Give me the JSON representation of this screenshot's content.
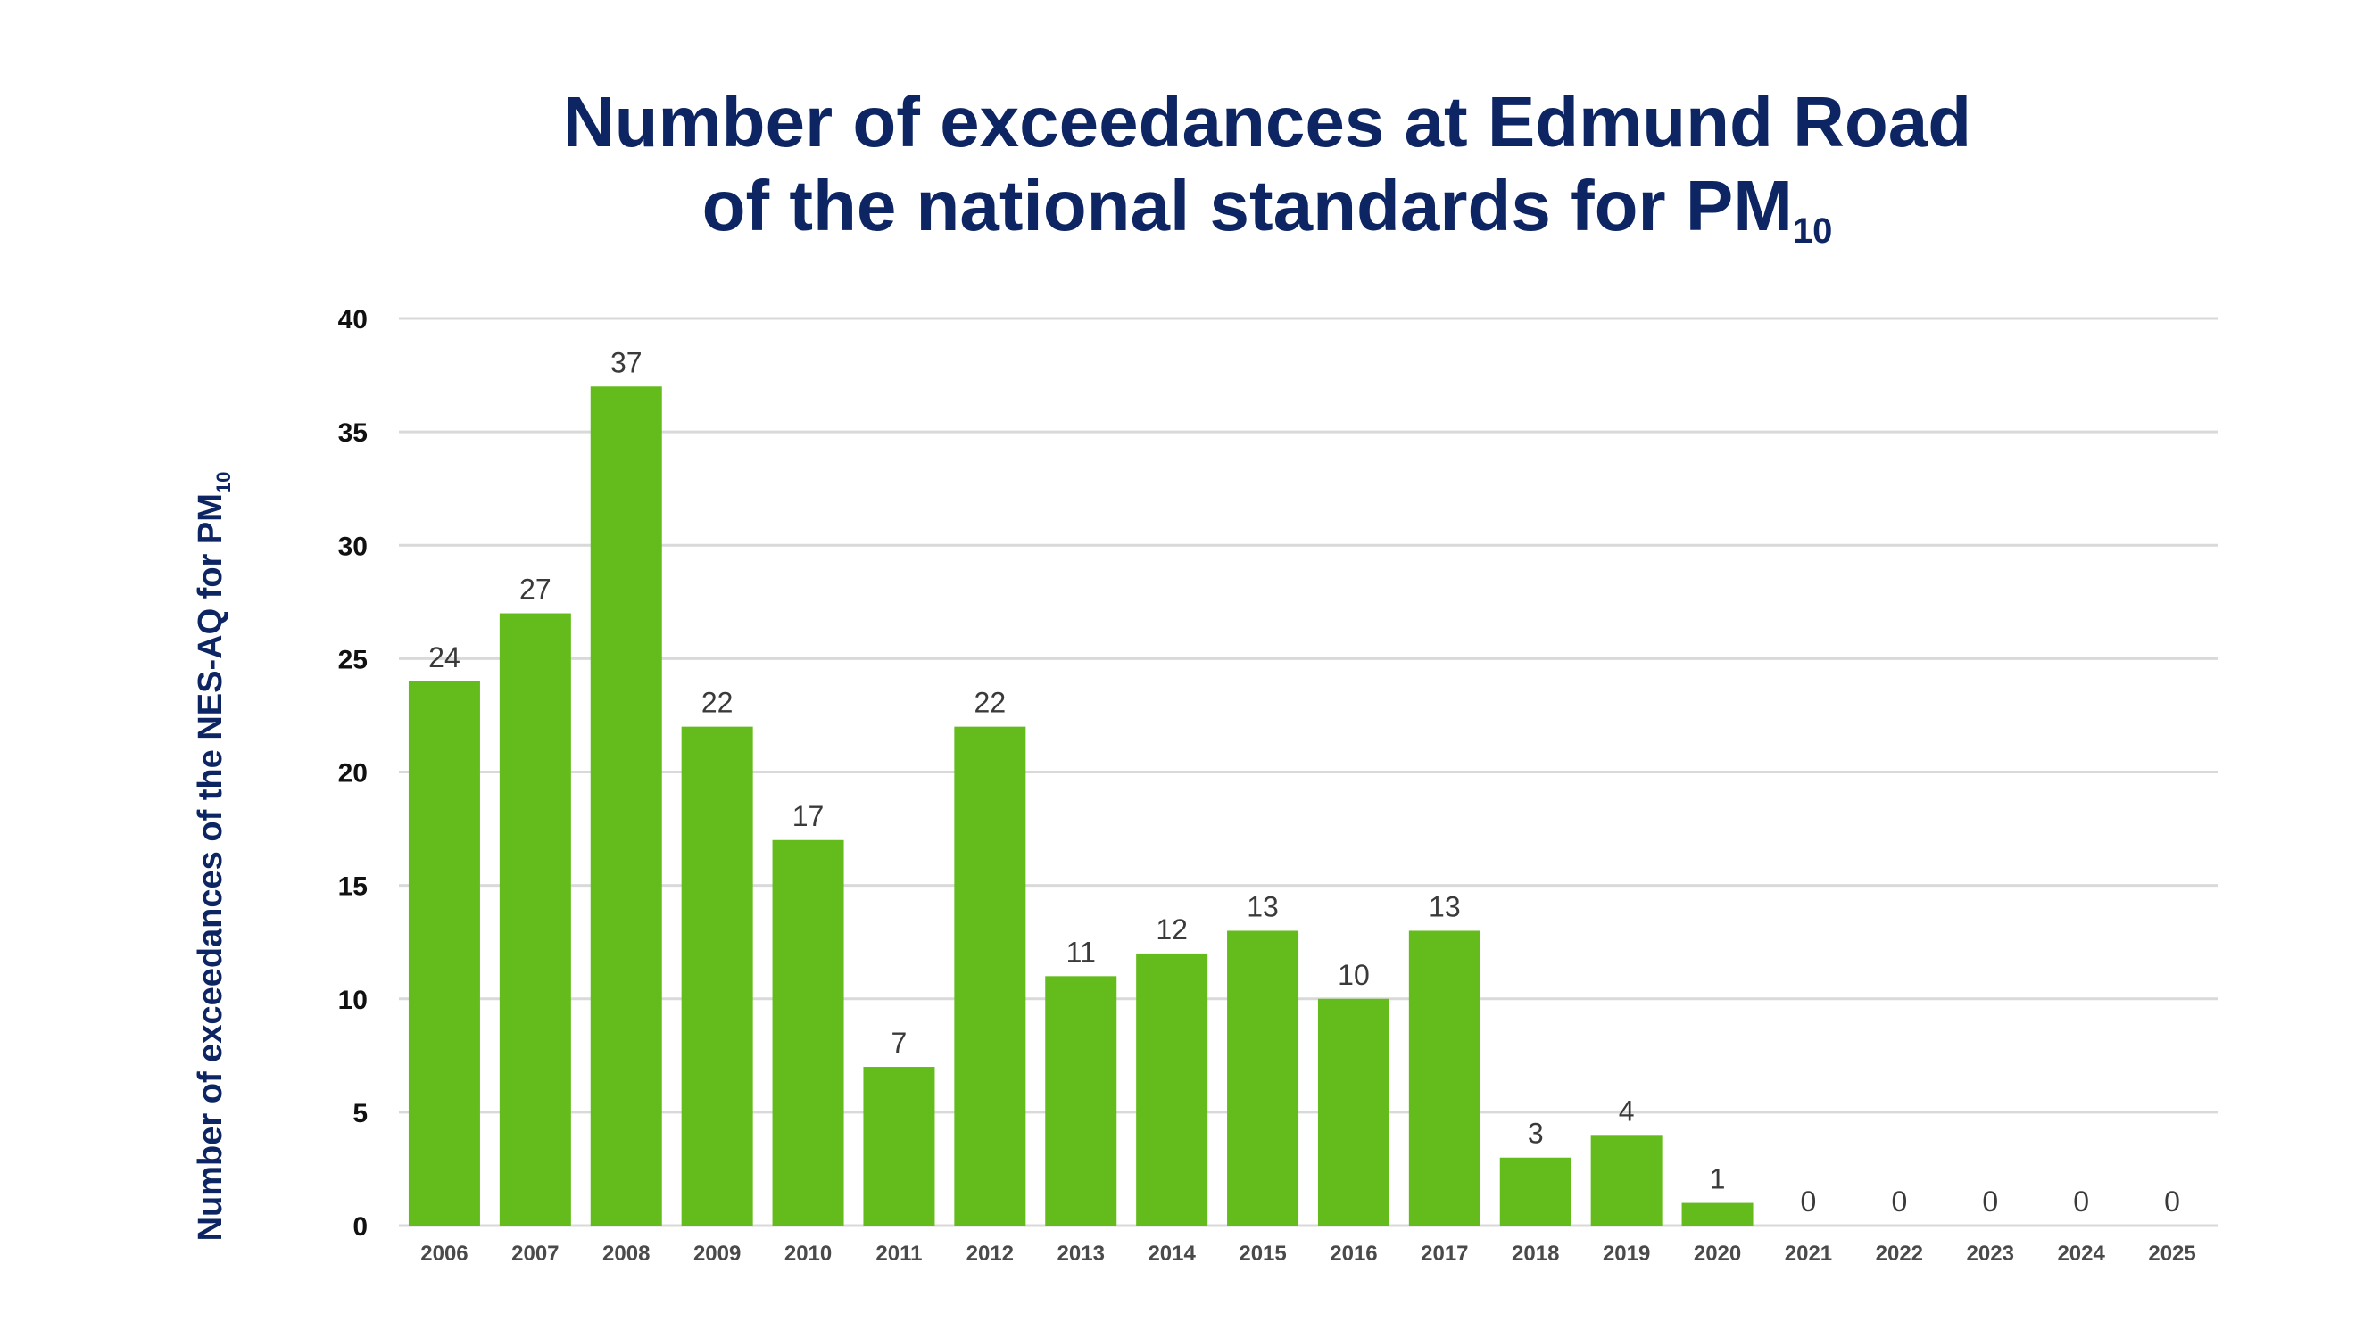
{
  "chart_data": {
    "type": "bar",
    "title_line1": "Number of exceedances at Edmund Road",
    "title_line2": "of the national standards for PM",
    "title_subscript": "10",
    "ylabel": "Number of exceedances of the NES-AQ for PM",
    "ylabel_subscript": "10",
    "xlabel": "",
    "ylim": [
      0,
      40
    ],
    "yticks": [
      0,
      5,
      10,
      15,
      20,
      25,
      30,
      35,
      40
    ],
    "categories": [
      "2006",
      "2007",
      "2008",
      "2009",
      "2010",
      "2011",
      "2012",
      "2013",
      "2014",
      "2015",
      "2016",
      "2017",
      "2018",
      "2019",
      "2020",
      "2021",
      "2022",
      "2023",
      "2024",
      "2025"
    ],
    "values": [
      24,
      27,
      37,
      22,
      17,
      7,
      22,
      11,
      12,
      13,
      10,
      13,
      3,
      4,
      1,
      0,
      0,
      0,
      0,
      0
    ],
    "data_labels": true,
    "grid": true,
    "legend": "none",
    "colors": {
      "bar": "#64bc1c",
      "title": "#0d2663",
      "grid": "#d9d9d9"
    }
  }
}
